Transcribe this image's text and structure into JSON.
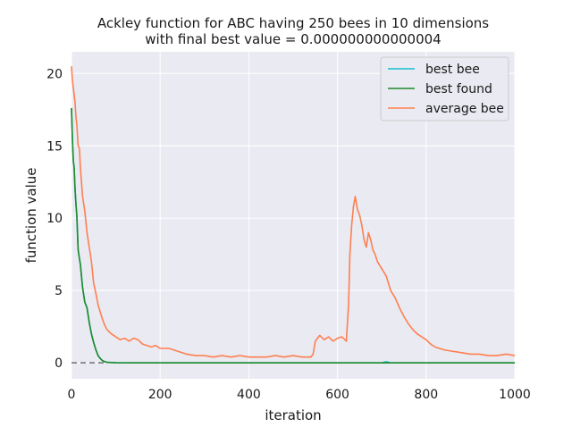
{
  "chart_data": {
    "type": "line",
    "title": "Ackley function for ABC having 250 bees in 10 dimensions",
    "subtitle": "with final best value = 0.000000000000004",
    "xlabel": "iteration",
    "ylabel": "function value",
    "xlim": [
      0,
      1000
    ],
    "ylim": [
      -1.1,
      21.5
    ],
    "xticks": [
      0,
      200,
      400,
      600,
      800,
      1000
    ],
    "yticks": [
      0,
      5,
      10,
      15,
      20
    ],
    "grid": true,
    "legend": "top-right",
    "colors": {
      "background": "#eaeaf2",
      "grid": "#ffffff",
      "best_bee": "#17becf",
      "best_found": "#1f8a2c",
      "average_bee": "#ff7f50",
      "reference": "#707070"
    },
    "reference_line": {
      "y": 0,
      "x_range": [
        0,
        80
      ],
      "style": "dashed"
    },
    "series": [
      {
        "name": "best bee",
        "key": "best_bee",
        "x": [
          0,
          2,
          4,
          6,
          8,
          10,
          12,
          15,
          20,
          25,
          30,
          35,
          40,
          45,
          50,
          55,
          60,
          65,
          70,
          75,
          80,
          90,
          100,
          150,
          200,
          300,
          400,
          500,
          600,
          700,
          710,
          720,
          800,
          900,
          1000
        ],
        "y": [
          17.6,
          15.5,
          14.0,
          13.5,
          12.0,
          11.0,
          10.2,
          7.8,
          6.8,
          5.2,
          4.2,
          3.8,
          2.8,
          2.0,
          1.4,
          0.9,
          0.5,
          0.3,
          0.15,
          0.08,
          0.04,
          0.02,
          0.01,
          0.0,
          0.0,
          0.0,
          0.0,
          0.0,
          0.0,
          0.0,
          0.08,
          0.0,
          0.0,
          0.0,
          0.0
        ]
      },
      {
        "name": "best found",
        "key": "best_found",
        "x": [
          0,
          2,
          4,
          6,
          8,
          10,
          12,
          15,
          20,
          25,
          30,
          35,
          40,
          45,
          50,
          55,
          60,
          65,
          70,
          75,
          80,
          90,
          100,
          150,
          200,
          300,
          400,
          500,
          600,
          700,
          800,
          900,
          1000
        ],
        "y": [
          17.6,
          15.5,
          14.0,
          13.5,
          12.0,
          11.0,
          10.2,
          7.8,
          6.8,
          5.2,
          4.2,
          3.8,
          2.8,
          2.0,
          1.4,
          0.9,
          0.5,
          0.3,
          0.15,
          0.08,
          0.04,
          0.02,
          0.01,
          0.0,
          0.0,
          0.0,
          0.0,
          0.0,
          0.0,
          0.0,
          0.0,
          0.0,
          0.0
        ]
      },
      {
        "name": "average bee",
        "key": "average_bee",
        "x": [
          0,
          2,
          5,
          8,
          10,
          12,
          15,
          18,
          20,
          25,
          30,
          35,
          40,
          45,
          50,
          55,
          60,
          65,
          70,
          75,
          80,
          90,
          100,
          110,
          120,
          130,
          140,
          150,
          160,
          170,
          180,
          190,
          200,
          220,
          240,
          260,
          280,
          300,
          320,
          340,
          360,
          380,
          400,
          420,
          440,
          460,
          480,
          500,
          520,
          540,
          545,
          550,
          560,
          570,
          580,
          590,
          600,
          610,
          620,
          625,
          628,
          632,
          636,
          640,
          645,
          650,
          655,
          660,
          665,
          670,
          675,
          680,
          685,
          690,
          700,
          710,
          720,
          730,
          740,
          750,
          760,
          770,
          780,
          790,
          800,
          810,
          820,
          840,
          860,
          880,
          900,
          920,
          940,
          960,
          980,
          1000
        ],
        "y": [
          20.5,
          19.5,
          18.8,
          18.0,
          17.0,
          16.5,
          15.0,
          14.8,
          13.5,
          11.5,
          10.5,
          9.0,
          8.0,
          7.0,
          5.5,
          4.8,
          4.0,
          3.5,
          3.0,
          2.6,
          2.3,
          2.0,
          1.8,
          1.6,
          1.7,
          1.5,
          1.7,
          1.6,
          1.3,
          1.2,
          1.1,
          1.2,
          1.0,
          1.0,
          0.8,
          0.6,
          0.5,
          0.5,
          0.4,
          0.5,
          0.4,
          0.5,
          0.4,
          0.4,
          0.4,
          0.5,
          0.4,
          0.5,
          0.4,
          0.4,
          0.6,
          1.5,
          1.9,
          1.6,
          1.8,
          1.5,
          1.7,
          1.8,
          1.5,
          4.0,
          7.5,
          9.5,
          10.8,
          11.5,
          10.6,
          10.2,
          9.5,
          8.5,
          8.0,
          9.0,
          8.5,
          7.8,
          7.5,
          7.0,
          6.5,
          6.0,
          5.0,
          4.5,
          3.8,
          3.2,
          2.7,
          2.3,
          2.0,
          1.8,
          1.6,
          1.3,
          1.1,
          0.9,
          0.8,
          0.7,
          0.6,
          0.6,
          0.5,
          0.5,
          0.6,
          0.5
        ]
      }
    ]
  }
}
